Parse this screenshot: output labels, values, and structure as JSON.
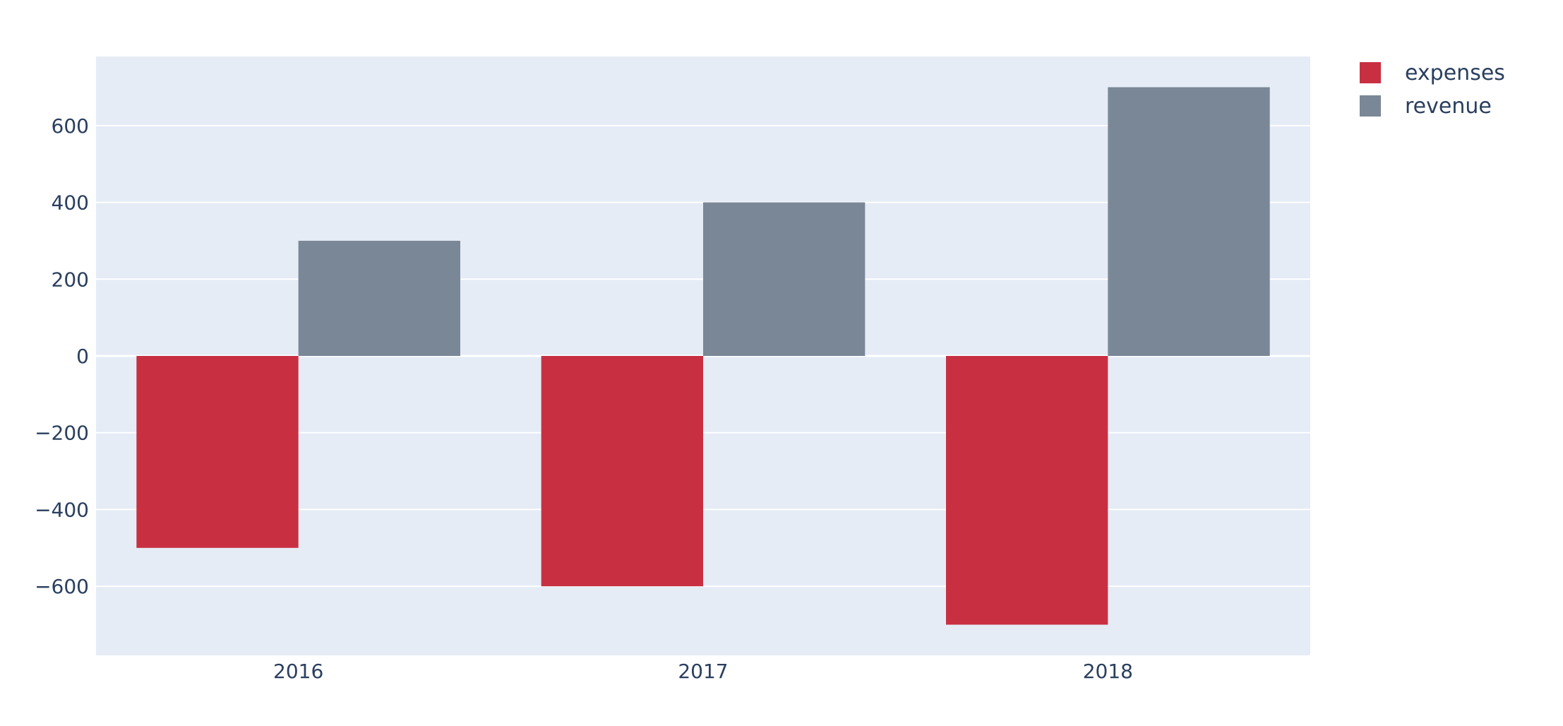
{
  "chart_data": {
    "type": "bar",
    "categories": [
      "2016",
      "2017",
      "2018"
    ],
    "series": [
      {
        "name": "expenses",
        "values": [
          -500,
          -600,
          -700
        ],
        "color": "#c83042"
      },
      {
        "name": "revenue",
        "values": [
          300,
          400,
          700
        ],
        "color": "#7a8796"
      }
    ],
    "yticks": [
      -600,
      -400,
      -200,
      0,
      200,
      400,
      600
    ],
    "ylim": [
      -780,
      780
    ],
    "grid": true,
    "legend_position": "top-right",
    "plot_background": "#e5ecf6",
    "grid_color": "#ffffff",
    "text_color": "#2a3f5f"
  }
}
